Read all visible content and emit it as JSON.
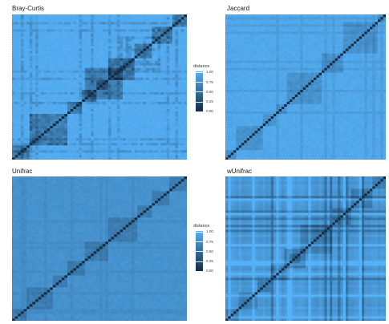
{
  "chart_data": [
    {
      "type": "heatmap",
      "title": "Bray-Curtis",
      "legend_title": "distance",
      "color_low": "#132B43",
      "color_high": "#56B1F7",
      "value_range": [
        0,
        1
      ],
      "legend_ticks": [
        "1.00",
        "0.75",
        "0.50",
        "0.25",
        "0.00"
      ],
      "diagonal_value": 0,
      "off_diagonal_typical": 0.95,
      "structure": "block clusters of lower distance around the diagonal with dark streaks"
    },
    {
      "type": "heatmap",
      "title": "Jaccard",
      "legend_title": "distance",
      "color_low": "#132B43",
      "color_high": "#56B1F7",
      "value_range": [
        0,
        1
      ],
      "legend_ticks": [
        "1.00",
        "0.75",
        "0.50",
        "0.25",
        "0.00"
      ],
      "diagonal_value": 0,
      "off_diagonal_typical": 0.9,
      "structure": "smooth, mostly uniform with mild diagonal blocks"
    },
    {
      "type": "heatmap",
      "title": "Unifrac",
      "legend_title": "distance",
      "color_low": "#132B43",
      "color_high": "#56B1F7",
      "value_range": [
        0,
        1
      ],
      "legend_ticks": [
        "1.00",
        "0.75",
        "0.50",
        "0.25",
        "0.00"
      ],
      "diagonal_value": 0,
      "off_diagonal_typical": 0.75,
      "structure": "diagonal blocks of slightly lower distance"
    },
    {
      "type": "heatmap",
      "title": "wUnifrac",
      "legend_title": "distance",
      "color_low": "#132B43",
      "color_high": "#56B1F7",
      "value_range": [
        0,
        1
      ],
      "legend_ticks": [
        "1.00",
        "0.75",
        "0.50",
        "0.25",
        "0.00"
      ],
      "diagonal_value": 0,
      "off_diagonal_typical": 0.55,
      "structure": "strong cross-hatched light and dark bands with a dark cluster at center"
    }
  ]
}
